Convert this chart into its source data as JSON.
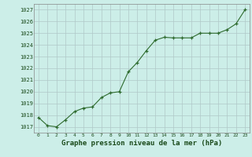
{
  "x_plot": [
    0,
    1,
    2,
    3,
    4,
    5,
    6,
    7,
    8,
    9,
    10,
    11,
    12,
    13,
    14,
    15,
    16,
    17,
    18,
    19,
    20,
    21,
    22,
    23
  ],
  "y_plot": [
    1017.8,
    1017.1,
    1017.0,
    1017.6,
    1018.3,
    1018.6,
    1018.7,
    1019.5,
    1019.9,
    1020.0,
    1021.7,
    1022.5,
    1023.5,
    1024.4,
    1024.65,
    1024.6,
    1024.6,
    1024.6,
    1025.0,
    1025.0,
    1025.0,
    1025.3,
    1025.8,
    1027.0
  ],
  "ylim": [
    1016.5,
    1027.5
  ],
  "yticks": [
    1017,
    1018,
    1019,
    1020,
    1021,
    1022,
    1023,
    1024,
    1025,
    1026,
    1027
  ],
  "xticks": [
    0,
    1,
    2,
    3,
    4,
    5,
    6,
    7,
    8,
    9,
    10,
    11,
    12,
    13,
    14,
    15,
    16,
    17,
    18,
    19,
    20,
    21,
    22,
    23
  ],
  "line_color": "#2d6a2d",
  "marker_color": "#2d6a2d",
  "bg_color": "#cceee8",
  "grid_color": "#b0c8c8",
  "xlabel": "Graphe pression niveau de la mer (hPa)",
  "xlabel_color": "#1a4a1a",
  "tick_color": "#1a4a1a",
  "label_fontsize": 6.5
}
